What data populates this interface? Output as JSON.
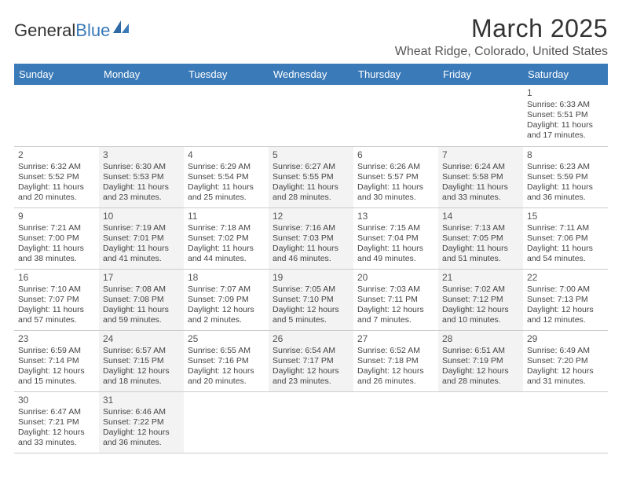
{
  "brand": {
    "part1": "General",
    "part2": "Blue"
  },
  "title": "March 2025",
  "location": "Wheat Ridge, Colorado, United States",
  "colors": {
    "header_bg": "#3a7ab8",
    "header_text": "#ffffff",
    "week_divider": "#3a7ab8",
    "cell_border": "#cccccc",
    "shade_bg": "#f3f3f3",
    "page_bg": "#ffffff",
    "text": "#444444"
  },
  "typography": {
    "title_fontsize": 32,
    "location_fontsize": 16,
    "dayheader_fontsize": 13,
    "cell_fontsize": 10.5,
    "daynum_fontsize": 12
  },
  "day_headers": [
    "Sunday",
    "Monday",
    "Tuesday",
    "Wednesday",
    "Thursday",
    "Friday",
    "Saturday"
  ],
  "weeks": [
    [
      null,
      null,
      null,
      null,
      null,
      null,
      {
        "n": "1",
        "sr": "Sunrise: 6:33 AM",
        "ss": "Sunset: 5:51 PM",
        "dl": "Daylight: 11 hours and 17 minutes."
      }
    ],
    [
      {
        "n": "2",
        "sr": "Sunrise: 6:32 AM",
        "ss": "Sunset: 5:52 PM",
        "dl": "Daylight: 11 hours and 20 minutes."
      },
      {
        "n": "3",
        "sr": "Sunrise: 6:30 AM",
        "ss": "Sunset: 5:53 PM",
        "dl": "Daylight: 11 hours and 23 minutes."
      },
      {
        "n": "4",
        "sr": "Sunrise: 6:29 AM",
        "ss": "Sunset: 5:54 PM",
        "dl": "Daylight: 11 hours and 25 minutes."
      },
      {
        "n": "5",
        "sr": "Sunrise: 6:27 AM",
        "ss": "Sunset: 5:55 PM",
        "dl": "Daylight: 11 hours and 28 minutes."
      },
      {
        "n": "6",
        "sr": "Sunrise: 6:26 AM",
        "ss": "Sunset: 5:57 PM",
        "dl": "Daylight: 11 hours and 30 minutes."
      },
      {
        "n": "7",
        "sr": "Sunrise: 6:24 AM",
        "ss": "Sunset: 5:58 PM",
        "dl": "Daylight: 11 hours and 33 minutes."
      },
      {
        "n": "8",
        "sr": "Sunrise: 6:23 AM",
        "ss": "Sunset: 5:59 PM",
        "dl": "Daylight: 11 hours and 36 minutes."
      }
    ],
    [
      {
        "n": "9",
        "sr": "Sunrise: 7:21 AM",
        "ss": "Sunset: 7:00 PM",
        "dl": "Daylight: 11 hours and 38 minutes."
      },
      {
        "n": "10",
        "sr": "Sunrise: 7:19 AM",
        "ss": "Sunset: 7:01 PM",
        "dl": "Daylight: 11 hours and 41 minutes."
      },
      {
        "n": "11",
        "sr": "Sunrise: 7:18 AM",
        "ss": "Sunset: 7:02 PM",
        "dl": "Daylight: 11 hours and 44 minutes."
      },
      {
        "n": "12",
        "sr": "Sunrise: 7:16 AM",
        "ss": "Sunset: 7:03 PM",
        "dl": "Daylight: 11 hours and 46 minutes."
      },
      {
        "n": "13",
        "sr": "Sunrise: 7:15 AM",
        "ss": "Sunset: 7:04 PM",
        "dl": "Daylight: 11 hours and 49 minutes."
      },
      {
        "n": "14",
        "sr": "Sunrise: 7:13 AM",
        "ss": "Sunset: 7:05 PM",
        "dl": "Daylight: 11 hours and 51 minutes."
      },
      {
        "n": "15",
        "sr": "Sunrise: 7:11 AM",
        "ss": "Sunset: 7:06 PM",
        "dl": "Daylight: 11 hours and 54 minutes."
      }
    ],
    [
      {
        "n": "16",
        "sr": "Sunrise: 7:10 AM",
        "ss": "Sunset: 7:07 PM",
        "dl": "Daylight: 11 hours and 57 minutes."
      },
      {
        "n": "17",
        "sr": "Sunrise: 7:08 AM",
        "ss": "Sunset: 7:08 PM",
        "dl": "Daylight: 11 hours and 59 minutes."
      },
      {
        "n": "18",
        "sr": "Sunrise: 7:07 AM",
        "ss": "Sunset: 7:09 PM",
        "dl": "Daylight: 12 hours and 2 minutes."
      },
      {
        "n": "19",
        "sr": "Sunrise: 7:05 AM",
        "ss": "Sunset: 7:10 PM",
        "dl": "Daylight: 12 hours and 5 minutes."
      },
      {
        "n": "20",
        "sr": "Sunrise: 7:03 AM",
        "ss": "Sunset: 7:11 PM",
        "dl": "Daylight: 12 hours and 7 minutes."
      },
      {
        "n": "21",
        "sr": "Sunrise: 7:02 AM",
        "ss": "Sunset: 7:12 PM",
        "dl": "Daylight: 12 hours and 10 minutes."
      },
      {
        "n": "22",
        "sr": "Sunrise: 7:00 AM",
        "ss": "Sunset: 7:13 PM",
        "dl": "Daylight: 12 hours and 12 minutes."
      }
    ],
    [
      {
        "n": "23",
        "sr": "Sunrise: 6:59 AM",
        "ss": "Sunset: 7:14 PM",
        "dl": "Daylight: 12 hours and 15 minutes."
      },
      {
        "n": "24",
        "sr": "Sunrise: 6:57 AM",
        "ss": "Sunset: 7:15 PM",
        "dl": "Daylight: 12 hours and 18 minutes."
      },
      {
        "n": "25",
        "sr": "Sunrise: 6:55 AM",
        "ss": "Sunset: 7:16 PM",
        "dl": "Daylight: 12 hours and 20 minutes."
      },
      {
        "n": "26",
        "sr": "Sunrise: 6:54 AM",
        "ss": "Sunset: 7:17 PM",
        "dl": "Daylight: 12 hours and 23 minutes."
      },
      {
        "n": "27",
        "sr": "Sunrise: 6:52 AM",
        "ss": "Sunset: 7:18 PM",
        "dl": "Daylight: 12 hours and 26 minutes."
      },
      {
        "n": "28",
        "sr": "Sunrise: 6:51 AM",
        "ss": "Sunset: 7:19 PM",
        "dl": "Daylight: 12 hours and 28 minutes."
      },
      {
        "n": "29",
        "sr": "Sunrise: 6:49 AM",
        "ss": "Sunset: 7:20 PM",
        "dl": "Daylight: 12 hours and 31 minutes."
      }
    ],
    [
      {
        "n": "30",
        "sr": "Sunrise: 6:47 AM",
        "ss": "Sunset: 7:21 PM",
        "dl": "Daylight: 12 hours and 33 minutes."
      },
      {
        "n": "31",
        "sr": "Sunrise: 6:46 AM",
        "ss": "Sunset: 7:22 PM",
        "dl": "Daylight: 12 hours and 36 minutes."
      },
      null,
      null,
      null,
      null,
      null
    ]
  ]
}
